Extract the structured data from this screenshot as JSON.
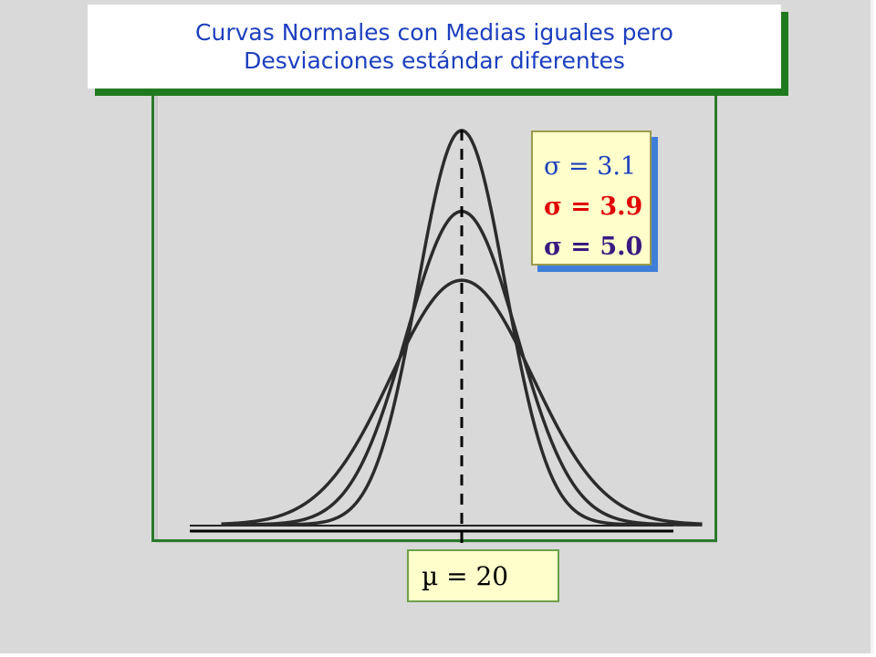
{
  "title": {
    "line1": "Curvas Normales con Medias iguales pero",
    "line2": "Desviaciones estándar diferentes"
  },
  "colors": {
    "title_text": "#1c3fbf",
    "frame_green": "#2a7a2a",
    "legend_bg": "#ffffcc",
    "sigma_31": "#1c3fbf",
    "sigma_39": "#e00000",
    "sigma_50": "#3a1a80"
  },
  "chart_data": {
    "type": "line",
    "title": "Curvas Normales con Medias iguales pero Desviaciones estándar diferentes",
    "xlabel": "",
    "ylabel": "",
    "mean": 20,
    "mean_label": "µ = 20",
    "xlim": [
      3,
      37
    ],
    "grid": false,
    "legend_position": "top-right",
    "series": [
      {
        "name": "σ = 3.1",
        "mu": 20,
        "sigma": 3.1,
        "color": "#1c3fbf"
      },
      {
        "name": "σ = 3.9",
        "mu": 20,
        "sigma": 3.9,
        "color": "#e00000"
      },
      {
        "name": "σ = 5.0",
        "mu": 20,
        "sigma": 5.0,
        "color": "#3a1a80"
      }
    ]
  }
}
